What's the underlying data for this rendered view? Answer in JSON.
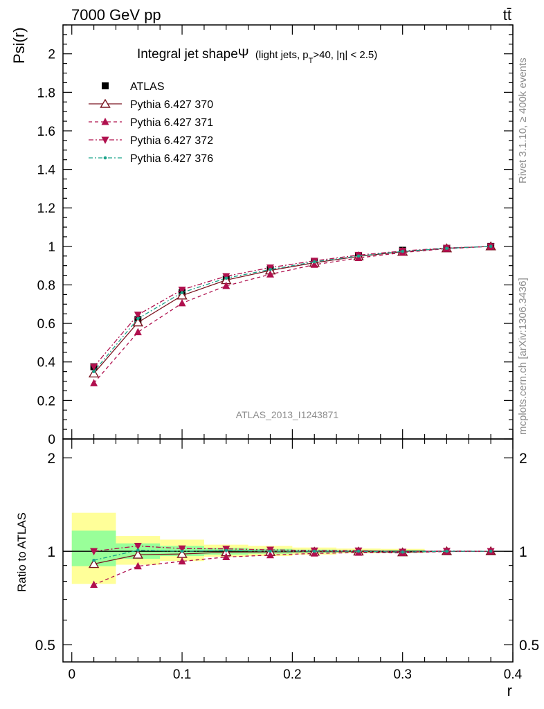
{
  "header": {
    "energy_label": "7000 GeV pp",
    "process_label": "tt̄",
    "title_main": "Integral jet shapeΨ",
    "title_sub": "(light jets, p",
    "title_sub_T": "T",
    "title_sub_rest": ">40, |η| < 2.5)",
    "rivet_label": "Rivet 3.1.10, ≥ 400k events",
    "mcplots_label": "mcplots.cern.ch [arXiv:1306.3436]",
    "analysis_label": "ATLAS_2013_I1243871"
  },
  "chart_data": [
    {
      "type": "line",
      "panel": "main",
      "ylabel": "Psi(r)",
      "xlim": [
        -0.008,
        0.4
      ],
      "ylim": [
        0,
        2.15
      ],
      "y_ticks": [
        "0",
        "0.2",
        "0.4",
        "0.6",
        "0.8",
        "1",
        "1.2",
        "1.4",
        "1.6",
        "1.8",
        "2"
      ],
      "grid": false,
      "legend_position": "top-left",
      "x": [
        0.02,
        0.06,
        0.1,
        0.14,
        0.18,
        0.22,
        0.26,
        0.3,
        0.34,
        0.38
      ],
      "series": [
        {
          "name": "ATLAS",
          "style": "data",
          "color": "#000000",
          "marker": "square",
          "values": [
            0.375,
            0.62,
            0.76,
            0.83,
            0.88,
            0.92,
            0.95,
            0.98,
            0.99,
            1.0
          ]
        },
        {
          "name": "Pythia 6.427 370",
          "style": "solid",
          "color": "#7a1520",
          "marker": "triangle-up-open",
          "values": [
            0.34,
            0.605,
            0.745,
            0.825,
            0.875,
            0.915,
            0.948,
            0.972,
            0.99,
            1.0
          ]
        },
        {
          "name": "Pythia 6.427 371",
          "style": "dashed",
          "color": "#b0104e",
          "marker": "triangle-up",
          "values": [
            0.29,
            0.555,
            0.705,
            0.795,
            0.855,
            0.905,
            0.94,
            0.968,
            0.988,
            1.0
          ]
        },
        {
          "name": "Pythia 6.427 372",
          "style": "dashdot",
          "color": "#b0104e",
          "marker": "triangle-down",
          "values": [
            0.375,
            0.645,
            0.775,
            0.845,
            0.89,
            0.925,
            0.955,
            0.976,
            0.992,
            1.0
          ]
        },
        {
          "name": "Pythia 6.427 376",
          "style": "dashdot-green",
          "color": "#1aa38a",
          "marker": "dot",
          "values": [
            0.35,
            0.625,
            0.76,
            0.835,
            0.88,
            0.92,
            0.95,
            0.974,
            0.99,
            1.0
          ]
        }
      ]
    },
    {
      "type": "line",
      "panel": "ratio",
      "ylabel": "Ratio to ATLAS",
      "xlabel": "r",
      "xlim": [
        -0.008,
        0.4
      ],
      "x_ticks": [
        "0",
        "0.1",
        "0.2",
        "0.3",
        "0.4"
      ],
      "y_ticks": [
        "0.5",
        "1",
        "2"
      ],
      "ylim": [
        0.44,
        2.3
      ],
      "log_y": true,
      "x": [
        0.02,
        0.06,
        0.1,
        0.14,
        0.18,
        0.22,
        0.26,
        0.3,
        0.34,
        0.38
      ],
      "bands": {
        "bins": [
          [
            0.0,
            0.04
          ],
          [
            0.04,
            0.08
          ],
          [
            0.08,
            0.12
          ],
          [
            0.12,
            0.16
          ],
          [
            0.16,
            0.2
          ],
          [
            0.2,
            0.24
          ],
          [
            0.24,
            0.28
          ],
          [
            0.28,
            0.32
          ]
        ],
        "stat": [
          [
            0.895,
            1.165
          ],
          [
            0.945,
            1.06
          ],
          [
            0.965,
            1.04
          ],
          [
            0.975,
            1.025
          ],
          [
            0.982,
            1.018
          ],
          [
            0.988,
            1.012
          ],
          [
            0.992,
            1.008
          ],
          [
            0.993,
            1.007
          ]
        ],
        "total": [
          [
            0.785,
            1.33
          ],
          [
            0.905,
            1.12
          ],
          [
            0.93,
            1.09
          ],
          [
            0.96,
            1.05
          ],
          [
            0.965,
            1.04
          ],
          [
            0.975,
            1.028
          ],
          [
            0.985,
            1.02
          ],
          [
            0.987,
            1.018
          ]
        ],
        "stat_color": "#99ff99",
        "total_color": "#ffff99"
      },
      "series": [
        {
          "name": "Pythia 6.427 370",
          "style": "solid",
          "color": "#7a1520",
          "marker": "triangle-up-open",
          "values": [
            0.91,
            0.975,
            0.98,
            0.993,
            0.995,
            0.997,
            0.998,
            0.992,
            1.0,
            1.0
          ]
        },
        {
          "name": "Pythia 6.427 371",
          "style": "dashed",
          "color": "#b0104e",
          "marker": "triangle-up",
          "values": [
            0.78,
            0.895,
            0.928,
            0.958,
            0.972,
            0.984,
            0.99,
            0.988,
            0.998,
            1.0
          ]
        },
        {
          "name": "Pythia 6.427 372",
          "style": "dashdot",
          "color": "#b0104e",
          "marker": "triangle-down",
          "values": [
            1.0,
            1.04,
            1.02,
            1.018,
            1.011,
            1.005,
            1.005,
            0.996,
            1.002,
            1.0
          ]
        },
        {
          "name": "Pythia 6.427 376",
          "style": "dashdot-green",
          "color": "#1aa38a",
          "marker": "dot",
          "values": [
            0.935,
            1.008,
            1.0,
            1.006,
            1.0,
            1.0,
            1.0,
            0.994,
            1.0,
            1.0
          ]
        }
      ]
    }
  ]
}
